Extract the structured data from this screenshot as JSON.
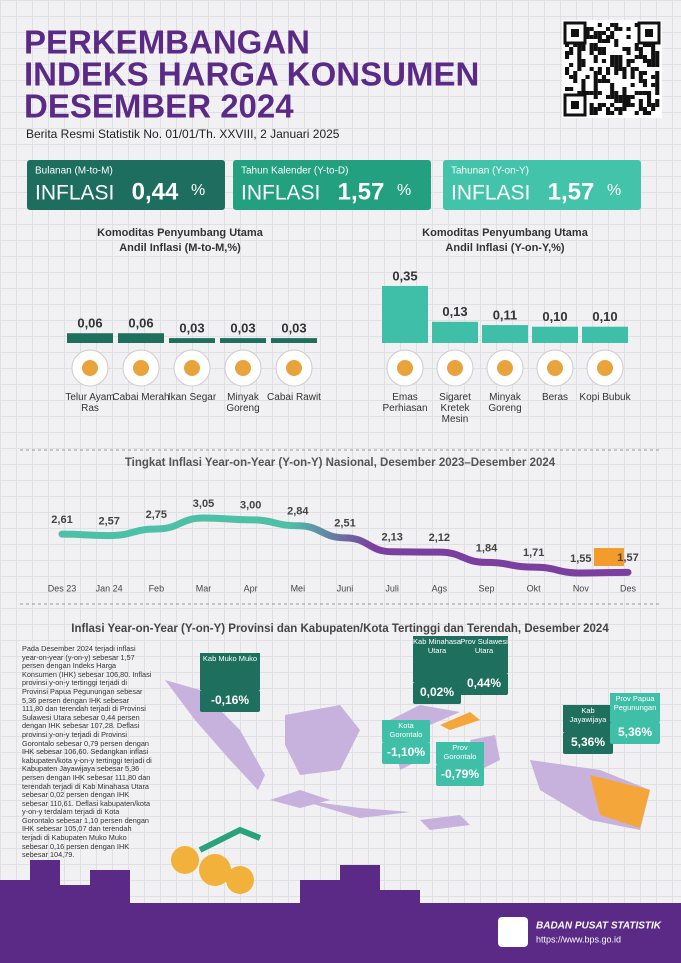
{
  "header": {
    "title_lines": [
      "PERKEMBANGAN",
      "INDEKS HARGA KONSUMEN",
      "DESEMBER 2024"
    ],
    "subtitle": "Berita Resmi Statistik No. 01/01/Th. XXVIII, 2 Januari 2025"
  },
  "kpis": [
    {
      "period": "Bulanan (M-to-M)",
      "word": "INFLASI",
      "value": "0,44",
      "unit": "%"
    },
    {
      "period": "Tahun Kalender (Y-to-D)",
      "word": "INFLASI",
      "value": "1,57",
      "unit": "%"
    },
    {
      "period": "Tahunan (Y-on-Y)",
      "word": "INFLASI",
      "value": "1,57",
      "unit": "%"
    }
  ],
  "chart_data": [
    {
      "type": "bar",
      "title_lines": [
        "Komoditas Penyumbang Utama",
        "Andil Inflasi (M-to-M,%)"
      ],
      "categories": [
        "Telur Ayam Ras",
        "Cabai Merah",
        "Ikan Segar",
        "Minyak Goreng",
        "Cabai Rawit"
      ],
      "values": [
        0.06,
        0.06,
        0.03,
        0.03,
        0.03
      ],
      "value_labels": [
        "0,06",
        "0,06",
        "0,03",
        "0,03",
        "0,03"
      ],
      "color": "#1f6f5f"
    },
    {
      "type": "bar",
      "title_lines": [
        "Komoditas Penyumbang Utama",
        "Andil Inflasi (Y-on-Y,%)"
      ],
      "categories": [
        "Emas Perhiasan",
        "Sigaret Kretek Mesin",
        "Minyak Goreng",
        "Beras",
        "Kopi Bubuk"
      ],
      "values": [
        0.35,
        0.13,
        0.11,
        0.1,
        0.1
      ],
      "value_labels": [
        "0,35",
        "0,13",
        "0,11",
        "0,10",
        "0,10"
      ],
      "color": "#3fbfa8"
    },
    {
      "type": "line",
      "title": "Tingkat Inflasi Year-on-Year (Y-on-Y) Nasional, Desember 2023–Desember 2024",
      "categories": [
        "Des 23",
        "Jan 24",
        "Feb",
        "Mar",
        "Apr",
        "Mei",
        "Juni",
        "Juli",
        "Ags",
        "Sep",
        "Okt",
        "Nov",
        "Des"
      ],
      "values": [
        2.61,
        2.57,
        2.75,
        3.05,
        3.0,
        2.84,
        2.51,
        2.13,
        2.12,
        1.84,
        1.71,
        1.55,
        1.57
      ],
      "value_labels": [
        "2,61",
        "2,57",
        "2,75",
        "3,05",
        "3,00",
        "2,84",
        "2,51",
        "2,13",
        "2,12",
        "1,84",
        "1,71",
        "1,55",
        "1,57"
      ],
      "colors": [
        "#4fc0a8",
        "#7b3fa0"
      ]
    }
  ],
  "map": {
    "title": "Inflasi Year-on-Year (Y-on-Y) Provinsi dan Kabupaten/Kota Tertinggi dan Terendah, Desember 2024",
    "text": "Pada Desember 2024 terjadi inflasi year-on-year (y-on-y) sebesar 1,57 persen dengan Indeks Harga Konsumen (IHK) sebesar 106,80. Inflasi provinsi y-on-y tertinggi terjadi di Provinsi Papua Pegunungan sebesar 5,36 persen dengan IHK sebesar 111,80 dan terendah terjadi di Provinsi Sulawesi Utara sebesar 0,44 persen dengan IHK sebesar 107,28. Deflasi provinsi y-on-y terjadi di Provinsi Gorontalo sebesar 0,79 persen dengan IHK sebesar 106,60. Sedangkan inflasi kabupaten/kota y-on-y tertinggi terjadi di Kabupaten Jayawijaya sebesar 5,36 persen dengan IHK sebesar 111,80 dan terendah terjadi di Kab Minahasa Utara sebesar 0,02 persen dengan IHK sebesar 110,61. Deflasi kabupaten/kota y-on-y terdalam terjadi di Kota Gorontalo sebesar 1,10 persen dengan IHK sebesar 105,07 dan terendah terjadi di Kabupaten Muko Muko sebesar 0,16 persen dengan IHK sebesar 104,79.",
    "callouts": [
      {
        "label": "Kab Muko Muko",
        "value": "-0,16%"
      },
      {
        "label": "Kab Minahasa Utara",
        "value": "0,02%"
      },
      {
        "label": "Prov Sulawesi Utara",
        "value": "0,44%"
      },
      {
        "label": "Kota Gorontalo",
        "value": "-1,10%"
      },
      {
        "label": "Prov Gorontalo",
        "value": "-0,79%"
      },
      {
        "label": "Kab Jayawijaya",
        "value": "5,36%"
      },
      {
        "label": "Prov Papua Pegunungan",
        "value": "5,36%"
      }
    ]
  },
  "footer": {
    "org": "BADAN PUSAT STATISTIK",
    "url": "https://www.bps.go.id"
  }
}
